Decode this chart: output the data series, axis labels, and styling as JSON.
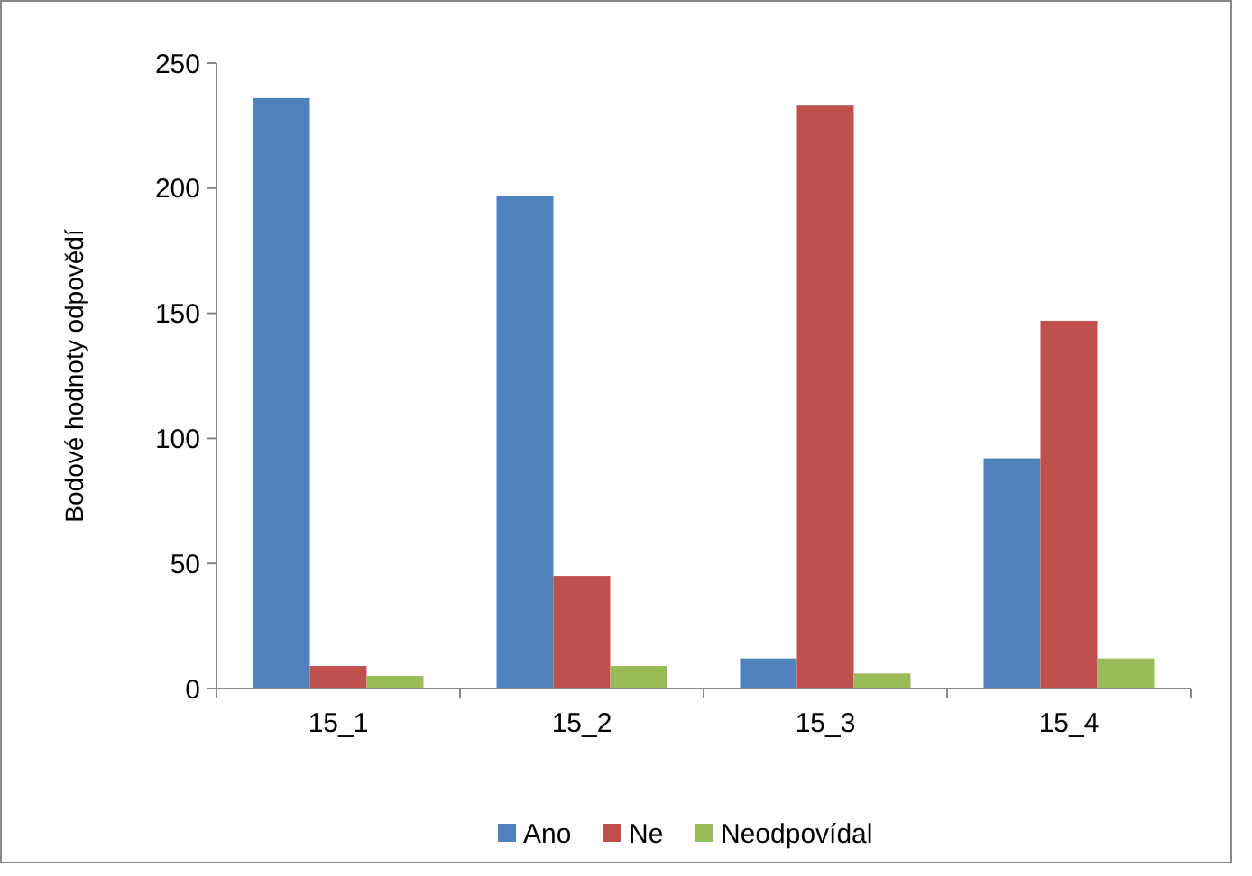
{
  "chart_data": {
    "type": "bar",
    "ylabel": "Bodové hodnoty odpovědí",
    "categories": [
      "15_1",
      "15_2",
      "15_3",
      "15_4"
    ],
    "series": [
      {
        "name": "Ano",
        "color": "#4f81bd",
        "values": [
          236,
          197,
          12,
          92
        ]
      },
      {
        "name": "Ne",
        "color": "#c0504d",
        "values": [
          9,
          45,
          233,
          147
        ]
      },
      {
        "name": "Neodpovídal",
        "color": "#9bbb59",
        "values": [
          5,
          9,
          6,
          12
        ]
      }
    ],
    "ylim": [
      0,
      250
    ],
    "yticks": [
      0,
      50,
      100,
      150,
      200,
      250
    ],
    "grid": false,
    "legend": "bottom"
  }
}
